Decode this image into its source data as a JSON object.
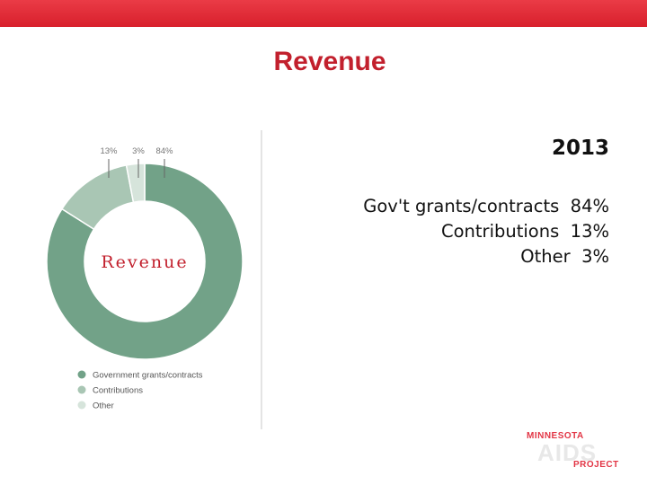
{
  "slide": {
    "title": "Revenue",
    "year": "2013",
    "breakdown": [
      {
        "label": "Gov't grants/contracts",
        "value": "84%"
      },
      {
        "label": "Contributions",
        "value": "13%"
      },
      {
        "label": "Other",
        "value": "3%"
      }
    ]
  },
  "logo": {
    "top_text": "MINNESOTA",
    "main_text": "AIDS",
    "bottom_text": "PROJECT"
  },
  "chart_data": {
    "type": "pie",
    "title": "Revenue",
    "categories": [
      "Government grants/contracts",
      "Contributions",
      "Other"
    ],
    "values": [
      84,
      13,
      3
    ],
    "value_labels": [
      "84%",
      "13%",
      "3%"
    ],
    "colors": [
      "#72a288",
      "#a9c6b4",
      "#d6e4db"
    ],
    "legend_position": "bottom-left",
    "donut": true
  }
}
